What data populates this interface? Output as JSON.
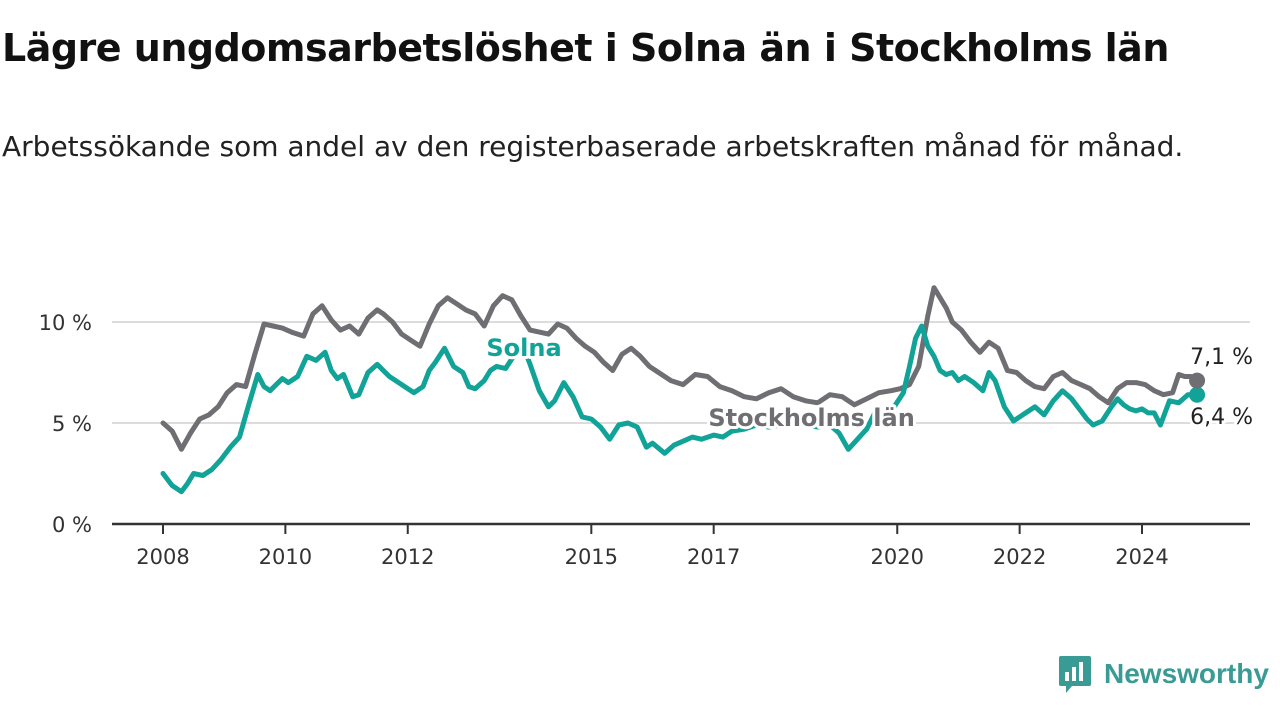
{
  "title": "Lägre ungdomsarbetslöshet i Solna än i Stockholms län",
  "subtitle": "Arbetssökande som andel av den registerbaserade arbetskraften månad för månad.",
  "brand": {
    "name": "Newsworthy",
    "icon": "newsworthy-logo-icon",
    "color": "#3a9a94"
  },
  "colors": {
    "solna": "#12a398",
    "stockholm": "#6e6e73",
    "grid": "#dcdcdc",
    "axis": "#333333"
  },
  "chart_data": {
    "type": "line",
    "title": "Lägre ungdomsarbetslöshet i Solna än i Stockholms län",
    "subtitle": "Arbetssökande som andel av den registerbaserade arbetskraften månad för månad.",
    "xlabel": "",
    "ylabel": "",
    "x_ticks": [
      {
        "label": "2008",
        "value": 2008.0
      },
      {
        "label": "2010",
        "value": 2010.0
      },
      {
        "label": "2012",
        "value": 2012.0
      },
      {
        "label": "2015",
        "value": 2015.0
      },
      {
        "label": "2017",
        "value": 2017.0
      },
      {
        "label": "2020",
        "value": 2020.0
      },
      {
        "label": "2022",
        "value": 2022.0
      },
      {
        "label": "2024",
        "value": 2024.0
      }
    ],
    "y_ticks": [
      {
        "label": "0 %",
        "value": 0
      },
      {
        "label": "5 %",
        "value": 5
      },
      {
        "label": "10 %",
        "value": 10
      }
    ],
    "xlim": [
      2007.2,
      2025.8
    ],
    "ylim": [
      0,
      12.5
    ],
    "grid": true,
    "legend": "inline labels",
    "series": [
      {
        "name": "Solna",
        "color": "#12a398",
        "end_label": "6,4 %",
        "x": [
          2008.0,
          2008.15,
          2008.3,
          2008.4,
          2008.5,
          2008.65,
          2008.8,
          2008.95,
          2009.1,
          2009.25,
          2009.4,
          2009.55,
          2009.65,
          2009.75,
          2009.85,
          2009.95,
          2010.05,
          2010.2,
          2010.35,
          2010.5,
          2010.65,
          2010.75,
          2010.85,
          2010.95,
          2011.1,
          2011.2,
          2011.35,
          2011.5,
          2011.6,
          2011.7,
          2011.85,
          2011.95,
          2012.1,
          2012.25,
          2012.35,
          2012.45,
          2012.6,
          2012.75,
          2012.9,
          2013.0,
          2013.1,
          2013.25,
          2013.35,
          2013.45,
          2013.6,
          2013.75,
          2013.9,
          2014.0,
          2014.15,
          2014.3,
          2014.4,
          2014.55,
          2014.7,
          2014.85,
          2015.0,
          2015.15,
          2015.3,
          2015.45,
          2015.6,
          2015.75,
          2015.9,
          2016.0,
          2016.2,
          2016.35,
          2016.5,
          2016.65,
          2016.8,
          2017.0,
          2017.15,
          2017.3,
          2017.5,
          2017.7,
          2017.9,
          2018.1,
          2018.3,
          2018.5,
          2018.7,
          2018.9,
          2019.05,
          2019.2,
          2019.35,
          2019.5,
          2019.65,
          2019.8,
          2019.95,
          2020.1,
          2020.2,
          2020.3,
          2020.4,
          2020.5,
          2020.6,
          2020.7,
          2020.8,
          2020.9,
          2021.0,
          2021.1,
          2021.25,
          2021.4,
          2021.5,
          2021.6,
          2021.75,
          2021.9,
          2022.0,
          2022.1,
          2022.25,
          2022.4,
          2022.55,
          2022.7,
          2022.85,
          2023.0,
          2023.1,
          2023.2,
          2023.35,
          2023.5,
          2023.6,
          2023.7,
          2023.8,
          2023.9,
          2024.0,
          2024.1,
          2024.2,
          2024.3,
          2024.45,
          2024.6,
          2024.75,
          2024.9
        ],
        "values": [
          2.5,
          1.9,
          1.6,
          2.0,
          2.5,
          2.4,
          2.7,
          3.2,
          3.8,
          4.3,
          5.9,
          7.4,
          6.8,
          6.6,
          6.9,
          7.2,
          7.0,
          7.3,
          8.3,
          8.1,
          8.5,
          7.6,
          7.2,
          7.4,
          6.3,
          6.4,
          7.5,
          7.9,
          7.6,
          7.3,
          7.0,
          6.8,
          6.5,
          6.8,
          7.6,
          8.0,
          8.7,
          7.8,
          7.5,
          6.8,
          6.7,
          7.1,
          7.6,
          7.8,
          7.7,
          8.4,
          8.7,
          7.9,
          6.6,
          5.8,
          6.1,
          7.0,
          6.3,
          5.3,
          5.2,
          4.8,
          4.2,
          4.9,
          5.0,
          4.8,
          3.8,
          4.0,
          3.5,
          3.9,
          4.1,
          4.3,
          4.2,
          4.4,
          4.3,
          4.6,
          4.7,
          4.9,
          4.8,
          4.9,
          5.0,
          4.9,
          4.8,
          4.9,
          4.5,
          3.7,
          4.2,
          4.7,
          5.6,
          5.4,
          5.8,
          6.5,
          7.8,
          9.2,
          9.8,
          8.8,
          8.3,
          7.6,
          7.4,
          7.5,
          7.1,
          7.3,
          7.0,
          6.6,
          7.5,
          7.1,
          5.8,
          5.1,
          5.3,
          5.5,
          5.8,
          5.4,
          6.1,
          6.6,
          6.2,
          5.6,
          5.2,
          4.9,
          5.1,
          5.8,
          6.2,
          5.9,
          5.7,
          5.6,
          5.7,
          5.5,
          5.5,
          4.9,
          6.1,
          6.0,
          6.4,
          6.4
        ]
      },
      {
        "name": "Stockholms län",
        "color": "#6e6e73",
        "end_label": "7,1 %",
        "x": [
          2008.0,
          2008.15,
          2008.3,
          2008.45,
          2008.6,
          2008.75,
          2008.9,
          2009.05,
          2009.2,
          2009.35,
          2009.5,
          2009.65,
          2009.8,
          2009.95,
          2010.1,
          2010.3,
          2010.45,
          2010.6,
          2010.75,
          2010.9,
          2011.05,
          2011.2,
          2011.35,
          2011.5,
          2011.6,
          2011.75,
          2011.9,
          2012.05,
          2012.2,
          2012.35,
          2012.5,
          2012.65,
          2012.8,
          2012.95,
          2013.1,
          2013.25,
          2013.4,
          2013.55,
          2013.7,
          2013.85,
          2014.0,
          2014.15,
          2014.3,
          2014.45,
          2014.6,
          2014.75,
          2014.9,
          2015.05,
          2015.2,
          2015.35,
          2015.5,
          2015.65,
          2015.8,
          2015.95,
          2016.1,
          2016.3,
          2016.5,
          2016.7,
          2016.9,
          2017.1,
          2017.3,
          2017.5,
          2017.7,
          2017.9,
          2018.1,
          2018.3,
          2018.5,
          2018.7,
          2018.9,
          2019.1,
          2019.3,
          2019.5,
          2019.7,
          2019.9,
          2020.05,
          2020.2,
          2020.35,
          2020.5,
          2020.6,
          2020.7,
          2020.8,
          2020.9,
          2021.05,
          2021.2,
          2021.35,
          2021.5,
          2021.65,
          2021.8,
          2021.95,
          2022.1,
          2022.25,
          2022.4,
          2022.55,
          2022.7,
          2022.85,
          2023.0,
          2023.15,
          2023.3,
          2023.45,
          2023.6,
          2023.75,
          2023.9,
          2024.05,
          2024.2,
          2024.35,
          2024.5,
          2024.6,
          2024.7,
          2024.8,
          2024.9
        ],
        "values": [
          5.0,
          4.6,
          3.7,
          4.5,
          5.2,
          5.4,
          5.8,
          6.5,
          6.9,
          6.8,
          8.4,
          9.9,
          9.8,
          9.7,
          9.5,
          9.3,
          10.4,
          10.8,
          10.1,
          9.6,
          9.8,
          9.4,
          10.2,
          10.6,
          10.4,
          10.0,
          9.4,
          9.1,
          8.8,
          9.9,
          10.8,
          11.2,
          10.9,
          10.6,
          10.4,
          9.8,
          10.8,
          11.3,
          11.1,
          10.3,
          9.6,
          9.5,
          9.4,
          9.9,
          9.7,
          9.2,
          8.8,
          8.5,
          8.0,
          7.6,
          8.4,
          8.7,
          8.3,
          7.8,
          7.5,
          7.1,
          6.9,
          7.4,
          7.3,
          6.8,
          6.6,
          6.3,
          6.2,
          6.5,
          6.7,
          6.3,
          6.1,
          6.0,
          6.4,
          6.3,
          5.9,
          6.2,
          6.5,
          6.6,
          6.7,
          6.9,
          7.8,
          10.3,
          11.7,
          11.2,
          10.7,
          10.0,
          9.6,
          9.0,
          8.5,
          9.0,
          8.7,
          7.6,
          7.5,
          7.1,
          6.8,
          6.7,
          7.3,
          7.5,
          7.1,
          6.9,
          6.7,
          6.3,
          6.0,
          6.7,
          7.0,
          7.0,
          6.9,
          6.6,
          6.4,
          6.5,
          7.4,
          7.3,
          7.3,
          7.1
        ]
      }
    ],
    "annotations": [
      {
        "text": "Solna",
        "series": "Solna"
      },
      {
        "text": "Stockholms län",
        "series": "Stockholms län"
      },
      {
        "text": "7,1 %",
        "series": "Stockholms län"
      },
      {
        "text": "6,4 %",
        "series": "Solna"
      }
    ]
  }
}
